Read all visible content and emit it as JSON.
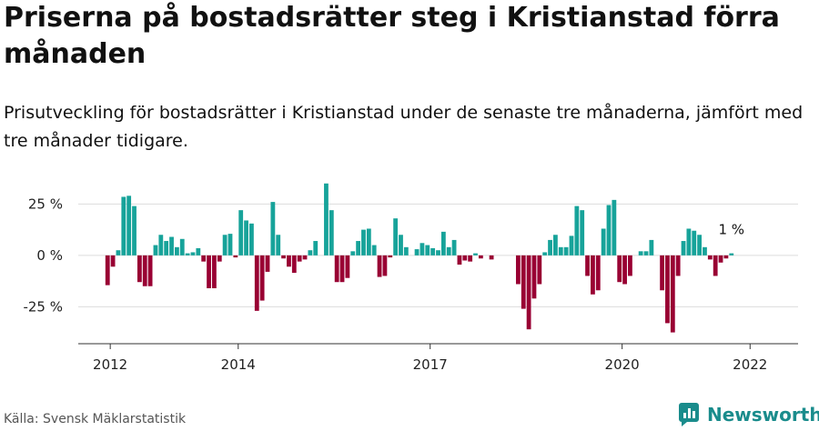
{
  "title": "Priserna på bostadsrätter steg i Kristianstad förra månaden",
  "subtitle": "Prisutveckling för bostadsrätter i Kristianstad under de senaste tre månaderna, jämfört med tre månader tidigare.",
  "source": "Källa: Svensk Mäklarstatistik",
  "brand": {
    "name": "Newsworthy",
    "icon": "newsworthy-logo-icon"
  },
  "colors": {
    "positive": "#17a39a",
    "negative": "#990033",
    "grid": "#dddddd",
    "axis": "#333333"
  },
  "chart_data": {
    "type": "bar",
    "title": "",
    "xlabel": "",
    "ylabel": "",
    "unit": "%",
    "ylim": [
      -43,
      38
    ],
    "yticks": [
      {
        "value": 25,
        "label": "25 %"
      },
      {
        "value": 0,
        "label": "0 %"
      },
      {
        "value": -25,
        "label": "-25 %"
      }
    ],
    "xticks": [
      {
        "value": 2012,
        "label": "2012"
      },
      {
        "value": 2014,
        "label": "2014"
      },
      {
        "value": 2017,
        "label": "2017"
      },
      {
        "value": 2020,
        "label": "2020"
      },
      {
        "value": 2022,
        "label": "2022"
      }
    ],
    "xlim": [
      2011.5,
      2022.75
    ],
    "grid": true,
    "legend": "none",
    "last_label": "1 %",
    "start": "2011-12",
    "values": [
      -14.5,
      -5.5,
      2.5,
      28.5,
      29,
      24,
      -13,
      -15,
      -15,
      5,
      10,
      7,
      9,
      4,
      8,
      1,
      1.5,
      3.5,
      -3,
      -16,
      -16,
      -3,
      10,
      10.5,
      -1,
      22,
      17,
      15.5,
      -27,
      -22,
      -8,
      26,
      10,
      -1.5,
      -5.5,
      -8.5,
      -3,
      -2,
      2.5,
      7,
      0,
      35,
      22,
      -13,
      -13,
      -11,
      2,
      7,
      12.5,
      13,
      5,
      -10.5,
      -10,
      -1,
      18,
      10,
      4,
      0,
      3,
      6,
      5,
      3.5,
      2.5,
      11.5,
      4,
      7.5,
      -4.5,
      -2.5,
      -3,
      1,
      -1.5,
      0,
      -2,
      0,
      0,
      0,
      0,
      -14,
      -26,
      -36,
      -21,
      -14,
      1.5,
      7.5,
      10,
      4,
      4,
      9.5,
      24,
      22,
      -10,
      -19,
      -17,
      13,
      24.5,
      27,
      -13,
      -14,
      -10,
      0,
      2,
      2,
      7.5,
      0,
      -17,
      -33,
      -37.5,
      -10,
      7,
      13,
      12,
      10,
      4,
      -2,
      -10,
      -3.5,
      -1.5,
      1
    ]
  }
}
